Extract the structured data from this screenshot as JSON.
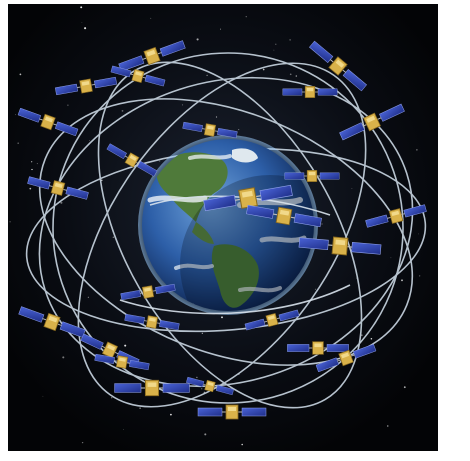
{
  "image": {
    "subject": "gps-satellite-constellation",
    "background_color": "#04060a",
    "frame_color": "#ffffff",
    "orbit_color": "#c9d6e2",
    "panel_color": "#3146b8",
    "satellite_body_color": "#d9b24a",
    "ocean_color": "#2d5fa8",
    "land_color": "#4f7a3a",
    "cloud_color": "#eef3f7"
  },
  "icons": {
    "earth": "earth-globe-icon",
    "satellite": "satellite-icon"
  }
}
